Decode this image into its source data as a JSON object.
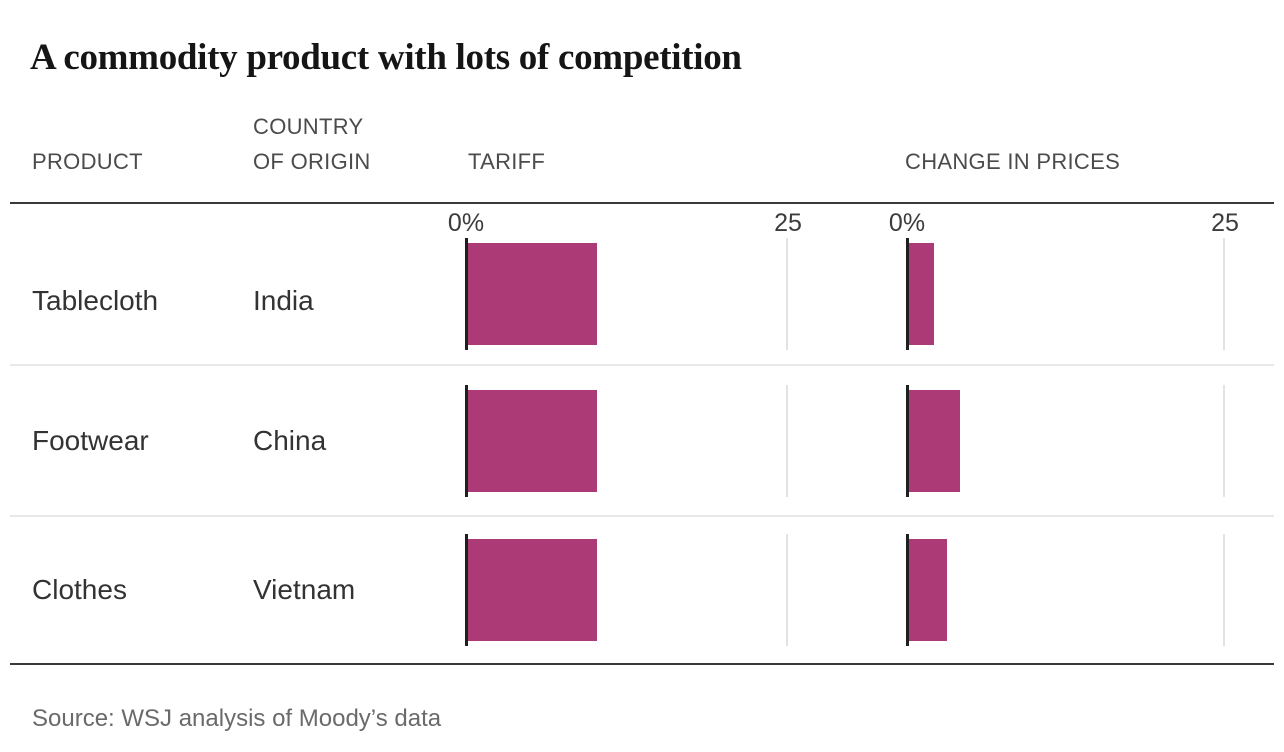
{
  "title": "A commodity product with lots of competition",
  "header": {
    "product": "PRODUCT",
    "country": "COUNTRY\nOF ORIGIN",
    "tariff": "TARIFF",
    "change": "CHANGE IN PRICES"
  },
  "axis_labels": {
    "tariff_zero": "0%",
    "tariff_max": "25",
    "change_zero": "0%",
    "change_max": "25"
  },
  "chart_data": {
    "type": "bar",
    "orientation": "horizontal",
    "title": "A commodity product with lots of competition",
    "categories": [
      "Tablecloth",
      "Footwear",
      "Clothes"
    ],
    "series": [
      {
        "name": "Tariff",
        "unit": "%",
        "values": [
          10,
          10,
          10
        ]
      },
      {
        "name": "Change in prices",
        "unit": "%",
        "values": [
          2,
          4,
          3
        ]
      }
    ],
    "rows": [
      {
        "product": "Tablecloth",
        "country": "India",
        "tariff": 10,
        "change": 2
      },
      {
        "product": "Footwear",
        "country": "China",
        "tariff": 10,
        "change": 4
      },
      {
        "product": "Clothes",
        "country": "Vietnam",
        "tariff": 10,
        "change": 3
      }
    ],
    "xlim": [
      0,
      25
    ],
    "axis_ticks": [
      "0%",
      "25"
    ],
    "grid": "single vertical gridline at 25",
    "legend_position": "none",
    "bar_color": "#ac3a76"
  },
  "colors": {
    "bar": "#ac3a76",
    "axis_line": "#1f1f1f",
    "gridline": "#e3e3e3",
    "rule_dark": "#3a3a3a",
    "rule_light": "#e8e8e8",
    "title_text": "#151515",
    "header_text": "#4b4b4b",
    "label_text": "#333333",
    "source_text": "#6a6a6a"
  },
  "source": "Source: WSJ analysis of Moody’s data"
}
